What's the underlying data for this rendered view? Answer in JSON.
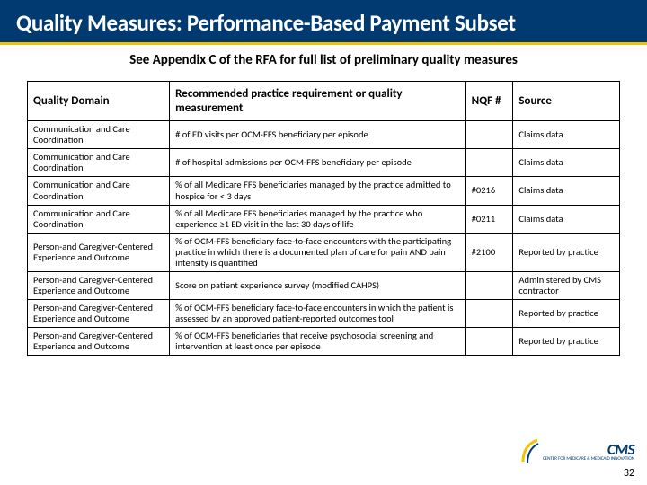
{
  "title": "Quality Measures: Performance-Based Payment  Subset",
  "subtitle": "See Appendix C of the RFA for full list of preliminary quality measures",
  "columns": {
    "domain": "Quality Domain",
    "measure": "Recommended practice requirement or quality measurement",
    "nqf": "NQF #",
    "source": "Source"
  },
  "rows": [
    {
      "domain": "Communication and Care Coordination",
      "measure": "# of ED visits per OCM-FFS beneficiary per episode",
      "nqf": "",
      "source": "Claims data"
    },
    {
      "domain": "Communication and Care Coordination",
      "measure": "# of hospital admissions per OCM-FFS beneficiary per episode",
      "nqf": "",
      "source": "Claims data"
    },
    {
      "domain": "Communication and Care Coordination",
      "measure": "% of all Medicare FFS beneficiaries managed by the practice admitted to hospice for < 3 days",
      "nqf": "#0216",
      "source": "Claims data"
    },
    {
      "domain": "Communication and Care Coordination",
      "measure": "% of all Medicare FFS beneficiaries managed by the practice who experience ≥1 ED visit in the last 30 days of life",
      "nqf": "#0211",
      "source": "Claims data"
    },
    {
      "domain": "Person-and Caregiver-Centered Experience and Outcome",
      "measure": "% of OCM-FFS beneficiary face-to-face encounters with the participating practice in which there is a documented  plan of care for pain  AND pain intensity is quantified",
      "nqf": "#2100",
      "source": "Reported by practice"
    },
    {
      "domain": "Person-and Caregiver-Centered Experience and Outcome",
      "measure": "Score on patient experience survey (modified CAHPS)",
      "nqf": "",
      "source": "Administered by CMS contractor"
    },
    {
      "domain": "Person-and Caregiver-Centered Experience and Outcome",
      "measure": "% of OCM-FFS beneficiary face-to-face encounters in which the patient is assessed by an approved patient-reported outcomes tool",
      "nqf": "",
      "source": "Reported by practice"
    },
    {
      "domain": "Person-and Caregiver-Centered Experience and Outcome",
      "measure": "% of OCM-FFS beneficiaries that receive psychosocial screening and intervention at least once per episode",
      "nqf": "",
      "source": "Reported by practice"
    }
  ],
  "logo": {
    "big": "CMS",
    "small": "CENTER FOR MEDICARE & MEDICAID INNOVATION"
  },
  "page_number": "32",
  "colors": {
    "title_bg": "#003a70",
    "accent": "#f2c200",
    "text": "#000000",
    "border": "#000000"
  }
}
